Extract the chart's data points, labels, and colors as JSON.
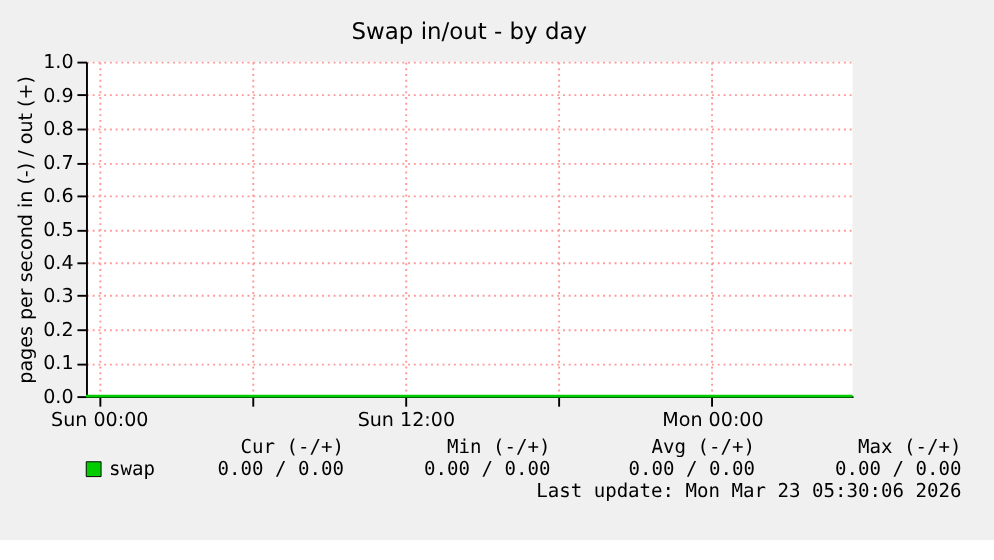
{
  "chart_data": {
    "type": "line",
    "title": "Swap in/out - by day",
    "ylabel": "pages per second in (-) / out (+)",
    "x": [
      "2026-03-21T23:30",
      "2026-03-22T06:00",
      "2026-03-22T12:00",
      "2026-03-22T18:00",
      "2026-03-23T00:00",
      "2026-03-23T05:30"
    ],
    "series": [
      {
        "name": "swap",
        "color": "#00cc00",
        "values": [
          0,
          0,
          0,
          0,
          0,
          0
        ]
      }
    ],
    "xlim": [
      "2026-03-21T23:30",
      "2026-03-23T05:30"
    ],
    "xticks": [
      {
        "value": "2026-03-22T00:00",
        "label": "Sun 00:00"
      },
      {
        "value": "2026-03-22T06:00",
        "label": null
      },
      {
        "value": "2026-03-22T12:00",
        "label": "Sun 12:00"
      },
      {
        "value": "2026-03-22T18:00",
        "label": null
      },
      {
        "value": "2026-03-23T00:00",
        "label": "Mon 00:00"
      }
    ],
    "ylim": [
      0,
      1.0
    ],
    "yticks": [
      {
        "value": 0,
        "label": "0.0"
      },
      0.1,
      0.2,
      0.3,
      0.4,
      0.5,
      0.6,
      0.7,
      0.8,
      0.9,
      {
        "value": 1.0,
        "label": "1.0"
      }
    ],
    "grid": true,
    "legend": "bottom left",
    "marker": "none",
    "line_style": "solid",
    "annotations": [
      "Cur (-/+)",
      "Min (-/+)",
      "Avg (-/+)",
      "Max (-/+)",
      "0.00 /  0.00",
      "0.00 /  0.00",
      "0.00 /  0.00",
      "0.00 /  0.00",
      "Last update: Mon Mar 23 05:30:06 2026"
    ]
  }
}
